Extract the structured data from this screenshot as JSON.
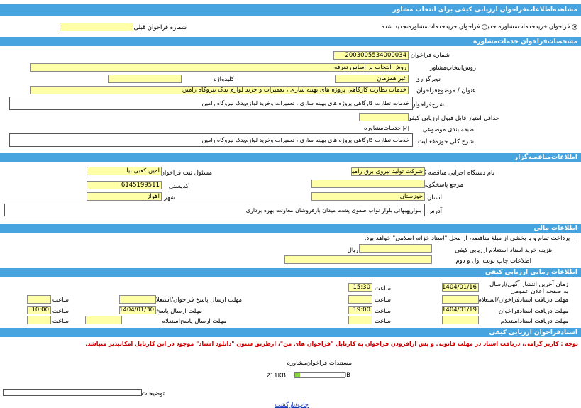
{
  "title": "مشاهده‌اطلاعات‌فراخوان ارزیابی کیفی برای انتخاب مشاور",
  "type_options": {
    "opt1": "فراخوان خریدخدمات‌مشاوره جدید",
    "opt2": "فراخوان خریدخدمات‌مشاوره‌تجدید شده",
    "previous_label": "شماره فراخوان قبلی",
    "previous_value": ""
  },
  "specs": {
    "header": "مشخصات‌فراخوان خدمات‌مشاوره",
    "number_label": "شماره فراخوان",
    "number_value": "2003005534000034",
    "method_label": "روش‌انتخاب‌مشاور",
    "method_value": "روش انتخاب بر اساس تعرفه",
    "concurrency_label": "نوبرگزاری",
    "concurrency_value": "غیر همزمان",
    "keyword_label": "کلیدواژه",
    "keyword_value": "",
    "subject_label": "عنوان / موضوع‌فراخوان",
    "subject_value": "خدمات نظارت کارگاهی پروژه های بهینه سازی ، تعمیرات و خرید لوازم یدک نیروگاه رامین",
    "desc_label": "شرح‌فراخوان",
    "desc_value": "خدمات نظارت کارگاهی پروژه های بهینه سازی ، تعمیرات وخرید لوازم‌یدک نیروگاه رامین",
    "min_score_label": "حداقل امتیاز قابل قبول ارزیابی کیفی",
    "min_score_value": "",
    "category_label": "طبقه بندی موضوعی",
    "category_value": "خدمات‌مشاوره",
    "scope_label": "شرح کلی حوزه‌فعالیت",
    "scope_value": "خدمات نظارت کارگاهی پروژه های بهینه سازی ، تعمیرات وخرید لوازم‌یدک نیروگاه رامین"
  },
  "tenderer": {
    "header": "اطلاعات‌مناقصه‌گزار",
    "org_label": "نام دستگاه اجرایی مناقصه گزار",
    "org_value": "شرکت تولید نیروی برق رامین",
    "registrar_label": "مسئول ثبت فراخوان",
    "registrar_value": "امین کعبی نیا",
    "responder_label": "مرجع پاسخگویی",
    "responder_value": "",
    "postal_label": "کدپستی",
    "postal_value": "6145199511",
    "province_label": "استان",
    "province_value": "خوزستان",
    "city_label": "شهر",
    "city_value": "اهواز",
    "address_label": "آدرس",
    "address_value": "بلوارپهبهانی  بلوار نواب صفوی پشت میدان بارفروشان معاونت بهره برداری"
  },
  "finance": {
    "header": "اطلاعات مالی",
    "payment_text": "پرداخت تمام و یا بخشی از مبلغ مناقصه، از محل \"اسناد خزانه اسلامی\" خواهد بود.",
    "doc_cost_label": "هزینه خرید اسناد استعلام ارزیابی کیفی",
    "doc_cost_value": "",
    "currency": "ریال",
    "print_label": "اطلاعات چاپ نوبت اول و دوم",
    "print_value": ""
  },
  "timing": {
    "header": "اطلاعات زمانی ارزیابی کیفی",
    "time_label": "ساعت",
    "publish_label": "زمان آخرین انتشار آگهی/ارسال به صفحه اعلان عمومی",
    "publish_date": "1404/01/16",
    "publish_time": "15:30",
    "recv_inq_label": "مهلت دریافت اسنادفراخوان/استعلام",
    "recv_inq_date": "",
    "recv_inq_time": "",
    "send_inq_label": "مهلت ارسال پاسخ فراخوان/استعلام",
    "send_inq_date": "",
    "send_inq_time": "",
    "recv_doc_label": "مهلت دریافت اسنادفراخوان",
    "recv_doc_date": "1404/01/19",
    "recv_doc_time": "19:00",
    "send_doc_label": "مهلت ارسال پاسخ‌فراخوان",
    "send_doc_date": "1404/01/30",
    "send_doc_time": "10:00",
    "recv_est_label": "مهلت دریافت اسنادا‌ستعلام",
    "recv_est_date": "",
    "recv_est_time": "",
    "send_est_label": "مهلت ارسال پاسخ‌استعلام",
    "send_est_date": "",
    "send_est_time": ""
  },
  "documents": {
    "header": "اسنادفراخوان ارزیابی کیفی",
    "notice": "توجه : کاربر گرامی، دریافت اسناد در مهلت قانونی و پس ازافزودن فراخوان به کارتابل \"فراخوان های من\"، ازطریق ستون \"دانلود اسناد\" موجود در این کارتابل امکانپذیر میباشد.",
    "file_title": "مستندات فراخوان‌مشاوره",
    "size_used": "211KB",
    "size_max": "2 MB",
    "fill_fraction": 0.1,
    "notes_label": "توضیحات",
    "notes_value": "",
    "back_link": "چاپ/بازگشت"
  }
}
